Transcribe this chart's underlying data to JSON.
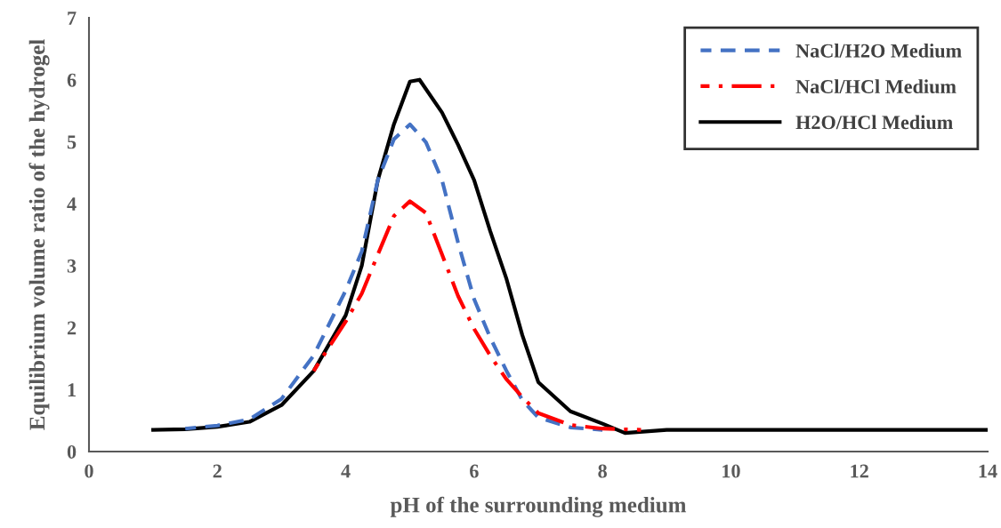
{
  "chart_data": {
    "type": "line",
    "xlabel": "pH of the surrounding medium",
    "ylabel": "Equilibrium volume ratio of the hydrogel",
    "xlim": [
      0,
      14
    ],
    "ylim": [
      0,
      7
    ],
    "xticks": [
      0,
      2,
      4,
      6,
      8,
      10,
      12,
      14
    ],
    "yticks": [
      0,
      1,
      2,
      3,
      4,
      5,
      6,
      7
    ],
    "grid": false,
    "legend": "top right",
    "marker": "none",
    "series": [
      {
        "name": "NaCl/H2O Medium",
        "color": "#4472c4",
        "line_style": "dashed",
        "x": [
          1.5,
          2,
          2.5,
          3,
          3.5,
          4,
          4.25,
          4.5,
          4.75,
          5,
          5.25,
          5.5,
          5.75,
          6,
          6.25,
          6.5,
          6.75,
          7,
          7.5,
          8
        ],
        "values": [
          0.37,
          0.42,
          0.52,
          0.85,
          1.55,
          2.6,
          3.23,
          4.38,
          5.04,
          5.28,
          4.99,
          4.38,
          3.37,
          2.46,
          1.84,
          1.31,
          0.83,
          0.55,
          0.39,
          0.35
        ]
      },
      {
        "name": "NaCl/HCl Medium",
        "color": "#ff0000",
        "line_style": "dashdot",
        "x": [
          3.5,
          4,
          4.25,
          4.5,
          4.75,
          5,
          5.25,
          5.5,
          5.75,
          6,
          6.25,
          6.5,
          6.75,
          7,
          7.5,
          8,
          8.6
        ],
        "values": [
          1.3,
          2.1,
          2.55,
          3.18,
          3.8,
          4.04,
          3.85,
          3.18,
          2.51,
          1.98,
          1.55,
          1.17,
          0.88,
          0.62,
          0.43,
          0.37,
          0.35
        ]
      },
      {
        "name": "H2O/HCl Medium",
        "color": "#000000",
        "line_style": "solid",
        "x": [
          1,
          1.5,
          2,
          2.5,
          3,
          3.5,
          4,
          4.25,
          4.5,
          4.75,
          5,
          5.15,
          5.5,
          5.75,
          6,
          6.25,
          6.5,
          6.75,
          7,
          7.5,
          8,
          8.35,
          9,
          10,
          12,
          14
        ],
        "values": [
          0.35,
          0.36,
          0.4,
          0.48,
          0.75,
          1.3,
          2.2,
          3.0,
          4.38,
          5.28,
          5.97,
          6.0,
          5.47,
          4.95,
          4.38,
          3.56,
          2.8,
          1.88,
          1.12,
          0.65,
          0.45,
          0.3,
          0.35,
          0.35,
          0.35,
          0.35
        ]
      }
    ]
  }
}
